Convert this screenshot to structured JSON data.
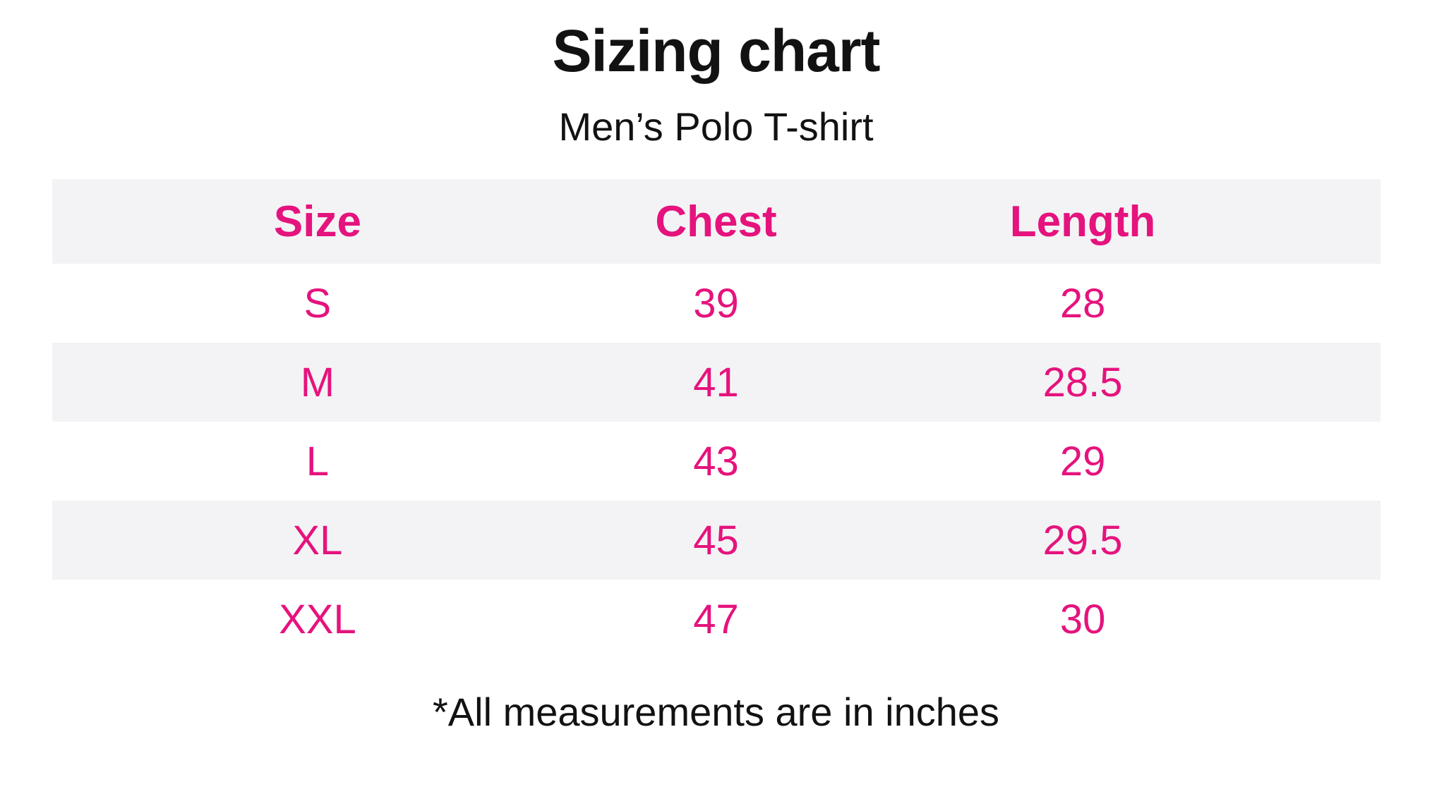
{
  "page": {
    "title": "Sizing chart",
    "subtitle": "Men’s Polo T-shirt",
    "footnote": "*All measurements are in inches"
  },
  "colors": {
    "accent_pink": "#e5137d",
    "row_stripe_gray": "#f3f3f5",
    "text_black": "#121212",
    "background": "#ffffff"
  },
  "chart_data": {
    "type": "table",
    "title": "Sizing chart",
    "subtitle": "Men’s Polo T-shirt",
    "columns": [
      "Size",
      "Chest",
      "Length"
    ],
    "rows": [
      [
        "S",
        39,
        28
      ],
      [
        "M",
        41,
        28.5
      ],
      [
        "L",
        43,
        29
      ],
      [
        "XL",
        45,
        29.5
      ],
      [
        "XXL",
        47,
        30
      ]
    ],
    "units": "inches",
    "footnote": "*All measurements are in inches",
    "layout_hints": {
      "header_background": "#f3f3f5",
      "zebra_striping": "even tbody rows gray, header gray",
      "borders": "none",
      "text_alignment": "center"
    }
  }
}
